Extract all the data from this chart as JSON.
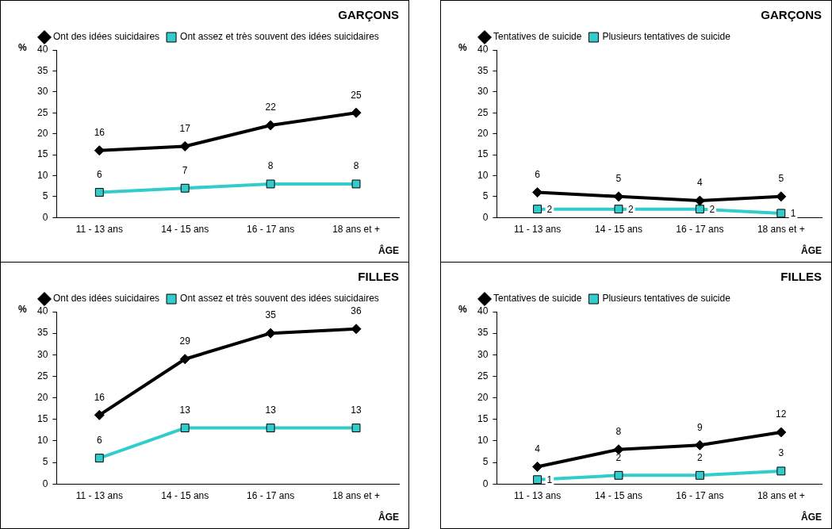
{
  "chart_data": [
    {
      "type": "line",
      "title": "GARÇONS",
      "xlabel": "ÂGE",
      "ylabel": "%",
      "categories": [
        "11 - 13 ans",
        "14 - 15 ans",
        "16 - 17 ans",
        "18 ans et +"
      ],
      "ylim": [
        0,
        40
      ],
      "yticks": [
        0,
        5,
        10,
        15,
        20,
        25,
        30,
        35,
        40
      ],
      "grid": false,
      "legend": "top left",
      "data_labels": true,
      "series": [
        {
          "name": "Ont des idées suicidaires",
          "color": "#000000",
          "marker": "diamond",
          "values": [
            16,
            17,
            22,
            25
          ]
        },
        {
          "name": "Ont assez et très souvent des idées suicidaires",
          "color": "#33cccc",
          "marker": "square",
          "values": [
            6,
            7,
            8,
            8
          ]
        }
      ]
    },
    {
      "type": "line",
      "title": "GARÇONS",
      "xlabel": "ÂGE",
      "ylabel": "%",
      "categories": [
        "11 - 13 ans",
        "14 - 15 ans",
        "16 - 17 ans",
        "18 ans et +"
      ],
      "ylim": [
        0,
        40
      ],
      "yticks": [
        0,
        5,
        10,
        15,
        20,
        25,
        30,
        35,
        40
      ],
      "grid": false,
      "legend": "top left",
      "data_labels": true,
      "series": [
        {
          "name": "Tentatives de suicide",
          "color": "#000000",
          "marker": "diamond",
          "values": [
            6,
            5,
            4,
            5
          ]
        },
        {
          "name": "Plusieurs tentatives de suicide",
          "color": "#33cccc",
          "marker": "square",
          "values": [
            2,
            2,
            2,
            1
          ]
        }
      ]
    },
    {
      "type": "line",
      "title": "FILLES",
      "xlabel": "ÂGE",
      "ylabel": "%",
      "categories": [
        "11 - 13 ans",
        "14 - 15 ans",
        "16 - 17 ans",
        "18 ans et +"
      ],
      "ylim": [
        0,
        40
      ],
      "yticks": [
        0,
        5,
        10,
        15,
        20,
        25,
        30,
        35,
        40
      ],
      "grid": false,
      "legend": "top left",
      "data_labels": true,
      "series": [
        {
          "name": "Ont des idées suicidaires",
          "color": "#000000",
          "marker": "diamond",
          "values": [
            16,
            29,
            35,
            36
          ]
        },
        {
          "name": "Ont assez et très souvent des idées suicidaires",
          "color": "#33cccc",
          "marker": "square",
          "values": [
            6,
            13,
            13,
            13
          ]
        }
      ]
    },
    {
      "type": "line",
      "title": "FILLES",
      "xlabel": "ÂGE",
      "ylabel": "%",
      "categories": [
        "11 - 13 ans",
        "14 - 15 ans",
        "16 - 17 ans",
        "18 ans et +"
      ],
      "ylim": [
        0,
        40
      ],
      "yticks": [
        0,
        5,
        10,
        15,
        20,
        25,
        30,
        35,
        40
      ],
      "grid": false,
      "legend": "top left",
      "data_labels": true,
      "series": [
        {
          "name": "Tentatives de suicide",
          "color": "#000000",
          "marker": "diamond",
          "values": [
            4,
            8,
            9,
            12
          ]
        },
        {
          "name": "Plusieurs tentatives de suicide",
          "color": "#33cccc",
          "marker": "square",
          "values": [
            1,
            2,
            2,
            3
          ]
        }
      ]
    }
  ]
}
